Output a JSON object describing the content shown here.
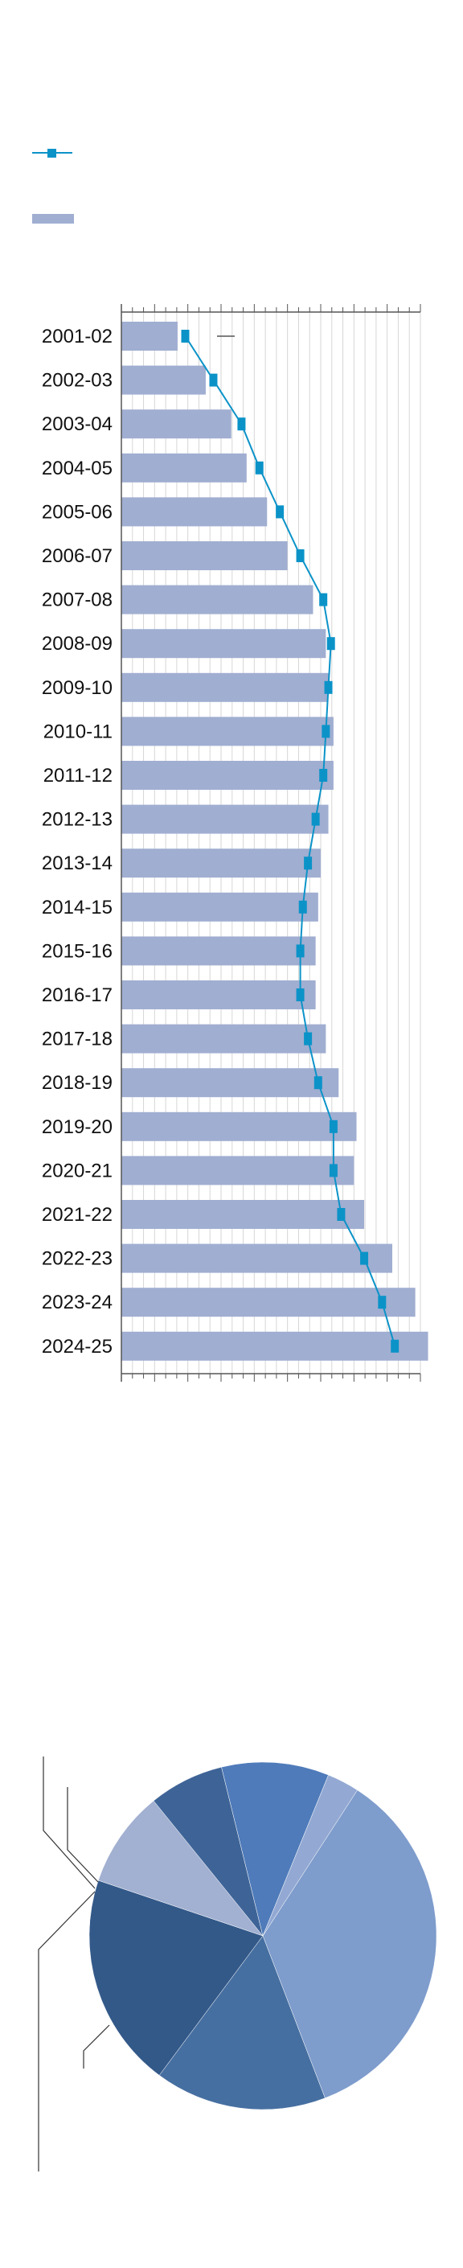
{
  "colors": {
    "bar": "#a0aed1",
    "line": "#0b93c8",
    "marker": "#0b93c8",
    "grid": "#d6d6d6",
    "axis": "#555555",
    "leader": "#333333",
    "pie": [
      "#7e9ccc",
      "#466fa1",
      "#335989",
      "#a2b0d1",
      "#3e6497",
      "#4f7bba",
      "#93a9d3"
    ]
  },
  "chart_data": [
    {
      "type": "bar",
      "orientation": "horizontal",
      "categories": [
        "2001-02",
        "2002-03",
        "2003-04",
        "2004-05",
        "2005-06",
        "2006-07",
        "2007-08",
        "2008-09",
        "2009-10",
        "2010-11",
        "2011-12",
        "2012-13",
        "2013-14",
        "2014-15",
        "2015-16",
        "2016-17",
        "2017-18",
        "2018-19",
        "2019-20",
        "2020-21",
        "2021-22",
        "2022-23",
        "2023-24",
        "2024-25"
      ],
      "series": [
        {
          "kind": "bar",
          "values": [
            22,
            33,
            43,
            49,
            57,
            65,
            75,
            80,
            81,
            83,
            83,
            81,
            78,
            77,
            76,
            76,
            80,
            85,
            92,
            91,
            95,
            106,
            115,
            120
          ]
        },
        {
          "kind": "line",
          "values": [
            25,
            36,
            47,
            54,
            62,
            70,
            79,
            82,
            81,
            80,
            79,
            76,
            73,
            71,
            70,
            70,
            73,
            77,
            83,
            83,
            86,
            95,
            102,
            107
          ]
        }
      ],
      "xlim": [
        0,
        117
      ],
      "grid": true,
      "legend": "top-left"
    },
    {
      "type": "pie",
      "values": [
        35,
        16,
        20,
        9,
        7,
        10,
        3
      ],
      "start_angle_deg": 33
    }
  ]
}
